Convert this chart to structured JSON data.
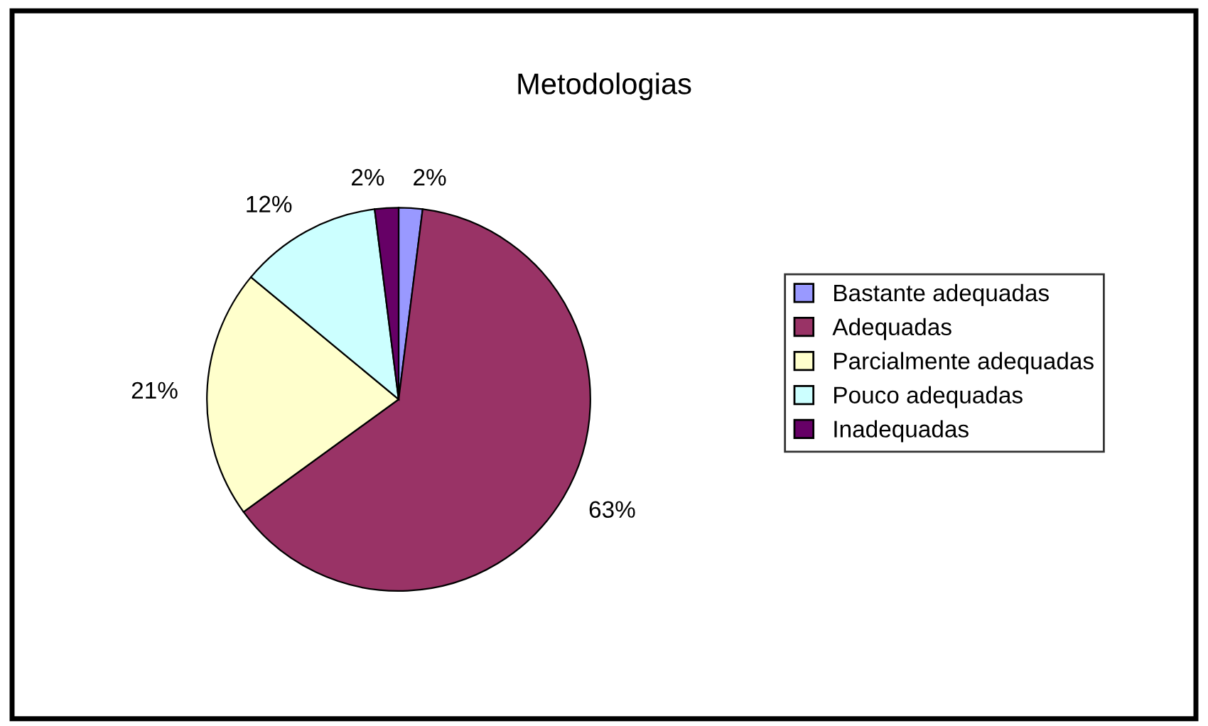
{
  "chart_data": {
    "type": "pie",
    "title": "Metodologias",
    "categories": [
      "Bastante adequadas",
      "Adequadas",
      "Parcialmente adequadas",
      "Pouco adequadas",
      "Inadequadas"
    ],
    "values": [
      2,
      63,
      21,
      12,
      2
    ],
    "colors": [
      "#9999ff",
      "#993366",
      "#ffffcc",
      "#ccffff",
      "#660066"
    ],
    "value_labels": [
      "2%",
      "63%",
      "21%",
      "12%",
      "2%"
    ],
    "legend": "right"
  }
}
